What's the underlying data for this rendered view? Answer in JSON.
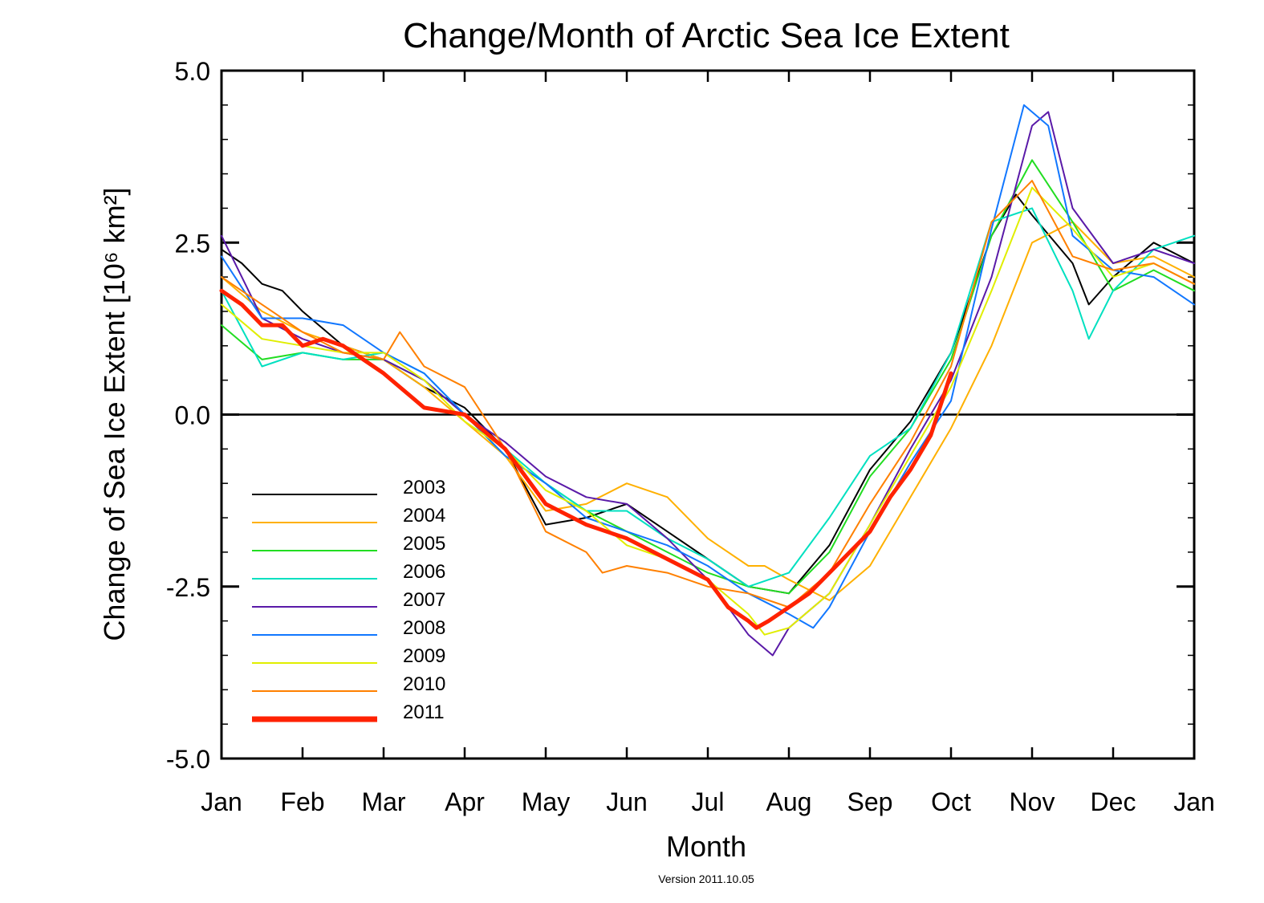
{
  "chart_data": {
    "type": "line",
    "title": "Change/Month of Arctic Sea Ice Extent",
    "xlabel": "Month",
    "ylabel": "Change of Sea Ice Extent [10⁶ km²]",
    "footnote": "Version 2011.10.05",
    "x_tick_labels": [
      "Jan",
      "Feb",
      "Mar",
      "Apr",
      "May",
      "Jun",
      "Jul",
      "Aug",
      "Sep",
      "Oct",
      "Nov",
      "Dec",
      "Jan"
    ],
    "y_tick_labels": [
      "5.0",
      "2.5",
      "0.0",
      "-2.5",
      "-5.0"
    ],
    "xlim": [
      1,
      13
    ],
    "ylim": [
      -5.0,
      5.0
    ],
    "legend_position": "bottom-left",
    "series": [
      {
        "name": "2003",
        "color": "#000000",
        "x": [
          1,
          1.25,
          1.5,
          1.75,
          2,
          2.5,
          3,
          3.5,
          4,
          4.5,
          5,
          5.5,
          6,
          6.5,
          7,
          7.5,
          8,
          8.5,
          9,
          9.5,
          10,
          10.5,
          10.8,
          11,
          11.5,
          11.7,
          12,
          12.5,
          13
        ],
        "y": [
          2.4,
          2.2,
          1.9,
          1.8,
          1.5,
          1.0,
          0.8,
          0.4,
          0.1,
          -0.5,
          -1.6,
          -1.5,
          -1.3,
          -1.7,
          -2.1,
          -2.5,
          -2.6,
          -1.9,
          -0.8,
          -0.1,
          0.9,
          2.6,
          3.2,
          2.9,
          2.2,
          1.6,
          2.0,
          2.5,
          2.2
        ]
      },
      {
        "name": "2004",
        "color": "#ffb000",
        "x": [
          1,
          1.5,
          2,
          2.5,
          3,
          3.5,
          4,
          4.5,
          5,
          5.5,
          6,
          6.5,
          7,
          7.5,
          7.7,
          8,
          8.5,
          9,
          9.5,
          10,
          10.5,
          11,
          11.5,
          12,
          12.5,
          13
        ],
        "y": [
          2.0,
          1.5,
          1.2,
          1.0,
          0.8,
          0.4,
          -0.1,
          -0.6,
          -1.4,
          -1.3,
          -1.0,
          -1.2,
          -1.8,
          -2.2,
          -2.2,
          -2.4,
          -2.7,
          -2.2,
          -1.2,
          -0.2,
          1.0,
          2.5,
          2.8,
          2.2,
          2.3,
          2.0
        ]
      },
      {
        "name": "2005",
        "color": "#22dd22",
        "x": [
          1,
          1.5,
          2,
          2.5,
          3,
          3.5,
          4,
          4.5,
          5,
          5.5,
          6,
          6.5,
          7,
          7.5,
          8,
          8.5,
          9,
          9.5,
          10,
          10.5,
          11,
          11.5,
          12,
          12.5,
          13
        ],
        "y": [
          1.3,
          0.8,
          0.9,
          0.8,
          0.8,
          0.5,
          0.0,
          -0.6,
          -1.0,
          -1.4,
          -1.7,
          -2.0,
          -2.3,
          -2.5,
          -2.6,
          -2.0,
          -0.9,
          -0.2,
          0.8,
          2.6,
          3.7,
          2.8,
          1.8,
          2.1,
          1.8
        ]
      },
      {
        "name": "2006",
        "color": "#00e0c0",
        "x": [
          1,
          1.5,
          2,
          2.5,
          3,
          3.5,
          4,
          4.5,
          5,
          5.5,
          6,
          6.5,
          7,
          7.5,
          8,
          8.5,
          9,
          9.5,
          10,
          10.5,
          11,
          11.5,
          11.7,
          12,
          12.5,
          13
        ],
        "y": [
          1.8,
          0.7,
          0.9,
          0.8,
          0.9,
          0.6,
          0.0,
          -0.5,
          -1.0,
          -1.4,
          -1.4,
          -1.8,
          -2.1,
          -2.5,
          -2.3,
          -1.5,
          -0.6,
          -0.2,
          0.9,
          2.8,
          3.0,
          1.8,
          1.1,
          1.8,
          2.4,
          2.6
        ]
      },
      {
        "name": "2007",
        "color": "#5a1aa8",
        "x": [
          1,
          1.25,
          1.5,
          2,
          2.5,
          3,
          3.5,
          4,
          4.5,
          5,
          5.5,
          6,
          6.5,
          7,
          7.5,
          7.8,
          8,
          8.5,
          9,
          9.5,
          10,
          10.5,
          11,
          11.2,
          11.5,
          12,
          12.5,
          13
        ],
        "y": [
          2.6,
          2.0,
          1.4,
          1.1,
          0.9,
          0.8,
          0.5,
          0.0,
          -0.4,
          -0.9,
          -1.2,
          -1.3,
          -1.8,
          -2.4,
          -3.2,
          -3.5,
          -3.1,
          -2.6,
          -1.6,
          -0.5,
          0.5,
          2.0,
          4.2,
          4.4,
          3.0,
          2.2,
          2.4,
          2.2
        ]
      },
      {
        "name": "2008",
        "color": "#1177ff",
        "x": [
          1,
          1.5,
          2,
          2.5,
          3,
          3.5,
          4,
          4.5,
          5,
          5.5,
          6,
          6.5,
          7,
          7.5,
          8,
          8.3,
          8.5,
          9,
          9.5,
          10,
          10.5,
          10.9,
          11.2,
          11.5,
          12,
          12.5,
          13
        ],
        "y": [
          2.3,
          1.4,
          1.4,
          1.3,
          0.9,
          0.6,
          0.0,
          -0.6,
          -1.0,
          -1.5,
          -1.7,
          -1.9,
          -2.2,
          -2.6,
          -2.9,
          -3.1,
          -2.8,
          -1.7,
          -0.7,
          0.2,
          2.7,
          4.5,
          4.2,
          2.6,
          2.1,
          2.0,
          1.6
        ]
      },
      {
        "name": "2009",
        "color": "#e0ee00",
        "x": [
          1,
          1.5,
          2,
          2.5,
          3,
          3.5,
          4,
          4.5,
          5,
          5.5,
          6,
          6.5,
          7,
          7.5,
          7.7,
          8,
          8.5,
          9,
          9.5,
          10,
          10.5,
          11,
          11.5,
          12,
          12.5,
          13
        ],
        "y": [
          1.6,
          1.1,
          1.0,
          0.9,
          0.9,
          0.5,
          -0.1,
          -0.5,
          -1.1,
          -1.4,
          -1.9,
          -2.1,
          -2.4,
          -2.9,
          -3.2,
          -3.1,
          -2.6,
          -1.6,
          -0.6,
          0.4,
          1.8,
          3.3,
          2.7,
          2.0,
          2.2,
          1.9
        ]
      },
      {
        "name": "2010",
        "color": "#ff8000",
        "x": [
          1,
          1.5,
          2,
          2.5,
          3,
          3.2,
          3.5,
          4,
          4.5,
          5,
          5.5,
          5.7,
          6,
          6.5,
          7,
          7.5,
          8,
          8.5,
          9,
          9.5,
          10,
          10.5,
          11,
          11.5,
          12,
          12.5,
          13
        ],
        "y": [
          2.0,
          1.6,
          1.2,
          0.9,
          0.8,
          1.2,
          0.7,
          0.4,
          -0.5,
          -1.7,
          -2.0,
          -2.3,
          -2.2,
          -2.3,
          -2.5,
          -2.6,
          -2.8,
          -2.3,
          -1.3,
          -0.4,
          0.7,
          2.8,
          3.4,
          2.3,
          2.1,
          2.2,
          1.9
        ]
      },
      {
        "name": "2011",
        "color": "#ff2200",
        "x": [
          1,
          1.25,
          1.5,
          1.75,
          2,
          2.25,
          2.5,
          3,
          3.5,
          4,
          4.5,
          5,
          5.5,
          6,
          6.5,
          7,
          7.25,
          7.5,
          7.6,
          7.75,
          8,
          8.25,
          8.5,
          8.75,
          9,
          9.25,
          9.5,
          9.75,
          10
        ],
        "y": [
          1.8,
          1.6,
          1.3,
          1.3,
          1.0,
          1.1,
          1.0,
          0.6,
          0.1,
          0.0,
          -0.5,
          -1.3,
          -1.6,
          -1.8,
          -2.1,
          -2.4,
          -2.8,
          -3.0,
          -3.1,
          -3.0,
          -2.8,
          -2.6,
          -2.3,
          -2.0,
          -1.7,
          -1.2,
          -0.8,
          -0.3,
          0.6
        ]
      }
    ]
  }
}
